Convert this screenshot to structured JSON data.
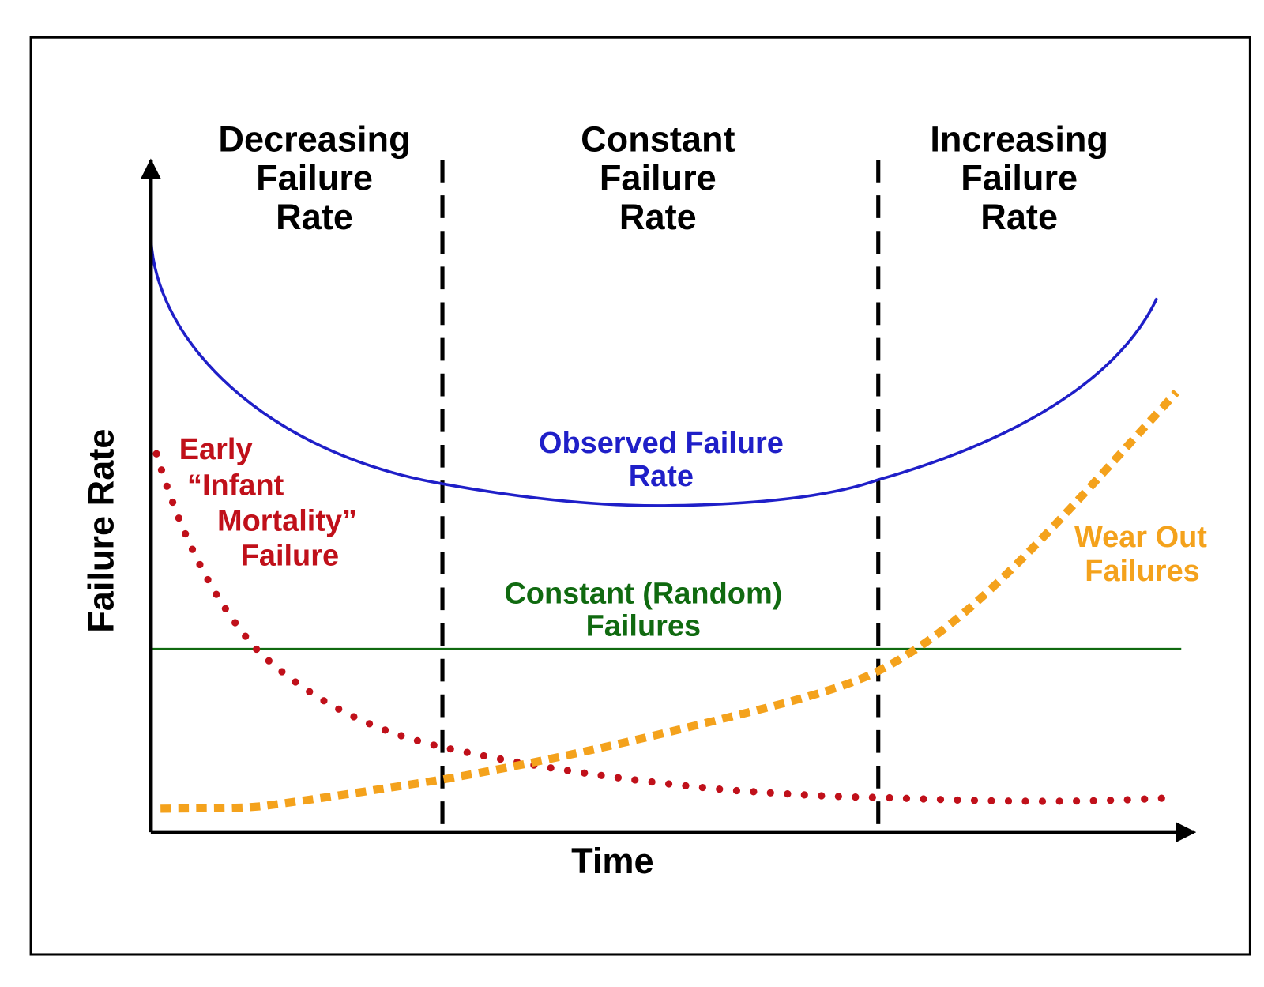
{
  "regions": [
    {
      "label": [
        "Decreasing",
        "Failure",
        "Rate"
      ]
    },
    {
      "label": [
        "Constant",
        "Failure",
        "Rate"
      ]
    },
    {
      "label": [
        "Increasing",
        "Failure",
        "Rate"
      ]
    }
  ],
  "curves": [
    {
      "label": [
        "Observed Failure",
        "Rate"
      ]
    },
    {
      "label": [
        "Early",
        "“Infant",
        "Mortality”",
        "Failure"
      ]
    },
    {
      "label": [
        "Constant (Random)",
        "Failures"
      ]
    },
    {
      "label": [
        "Wear Out",
        "Failures"
      ]
    }
  ],
  "axes": {
    "x_label": "Time",
    "y_label": "Failure Rate"
  }
}
